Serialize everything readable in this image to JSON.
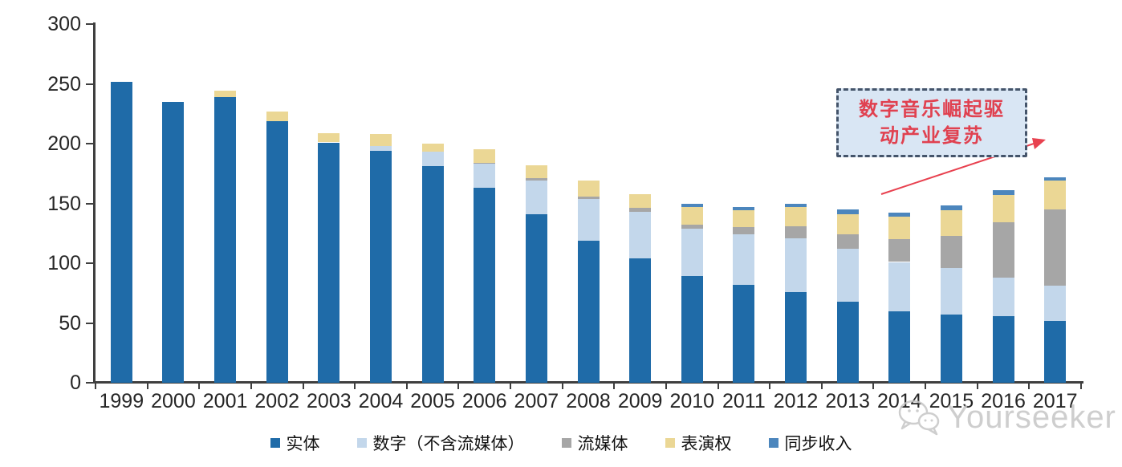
{
  "chart_data": {
    "type": "bar",
    "stacked": true,
    "title": "",
    "xlabel": "",
    "ylabel": "",
    "ylim": [
      0,
      300
    ],
    "yticks": [
      0,
      50,
      100,
      150,
      200,
      250,
      300
    ],
    "grid": false,
    "legend_position": "bottom",
    "categories": [
      "1999",
      "2000",
      "2001",
      "2002",
      "2003",
      "2004",
      "2005",
      "2006",
      "2007",
      "2008",
      "2009",
      "2010",
      "2011",
      "2012",
      "2013",
      "2014",
      "2015",
      "2016",
      "2017"
    ],
    "series": [
      {
        "name": "实体",
        "color": "#1f6ba8",
        "values": [
          252,
          235,
          239,
          219,
          201,
          194,
          181,
          163,
          141,
          119,
          104,
          89,
          82,
          76,
          68,
          60,
          57,
          56,
          52
        ]
      },
      {
        "name": "数字（不含流媒体）",
        "color": "#c3d7eb",
        "values": [
          0,
          0,
          0,
          0,
          0,
          4,
          12,
          20,
          28,
          35,
          39,
          40,
          42,
          45,
          44,
          41,
          39,
          32,
          29
        ]
      },
      {
        "name": "流媒体",
        "color": "#a6a6a6",
        "values": [
          0,
          0,
          0,
          0,
          0,
          0,
          0,
          1,
          2,
          2,
          3,
          3,
          6,
          10,
          12,
          19,
          27,
          46,
          64
        ]
      },
      {
        "name": "表演权",
        "color": "#ebd795",
        "values": [
          0,
          0,
          5,
          8,
          8,
          10,
          7,
          11,
          11,
          13,
          12,
          15,
          14,
          16,
          17,
          19,
          21,
          23,
          24
        ]
      },
      {
        "name": "同步收入",
        "color": "#4c86bd",
        "values": [
          0,
          0,
          0,
          0,
          0,
          0,
          0,
          0,
          0,
          0,
          0,
          3,
          3,
          3,
          4,
          3,
          4,
          4,
          3
        ]
      }
    ]
  },
  "annotation": {
    "line1": "数字音乐崛起驱",
    "line2": "动产业复苏",
    "text_color": "#e04150",
    "box_fill": "#d9e6f4",
    "box_border": "#44546a",
    "arrow_color": "#e8414f"
  },
  "watermark": {
    "text": "Yourseeker",
    "color": "#c6c6c6",
    "icon": "chat-bubbles-icon"
  }
}
